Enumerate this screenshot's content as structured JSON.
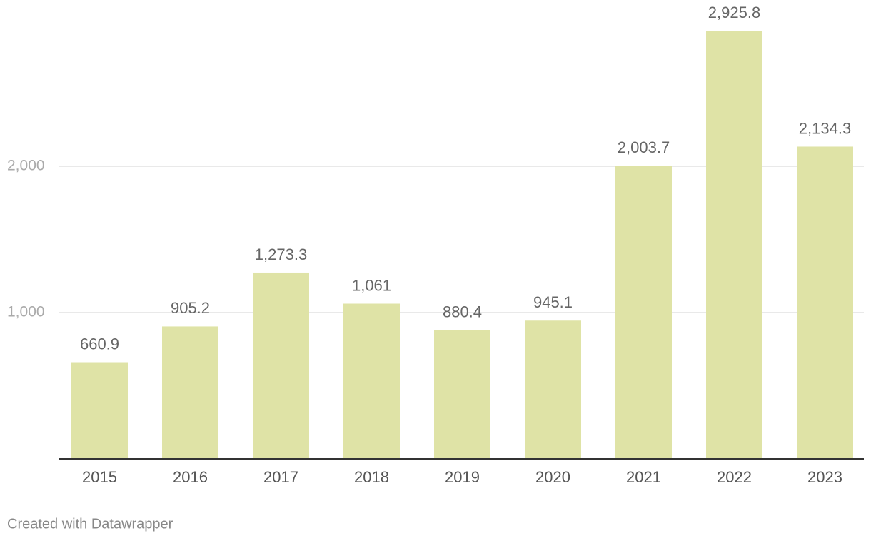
{
  "chart_data": {
    "type": "bar",
    "categories": [
      "2015",
      "2016",
      "2017",
      "2018",
      "2019",
      "2020",
      "2021",
      "2022",
      "2023"
    ],
    "values": [
      660.9,
      905.2,
      1273.3,
      1061,
      880.4,
      945.1,
      2003.7,
      2925.8,
      2134.3
    ],
    "value_labels": [
      "660.9",
      "905.2",
      "1,273.3",
      "1,061",
      "880.4",
      "945.1",
      "2,003.7",
      "2,925.8",
      "2,134.3"
    ],
    "color": "#dfe3a6",
    "ylim": [
      0,
      3000
    ],
    "yticks": [
      {
        "value": 1000,
        "label": "1,000"
      },
      {
        "value": 2000,
        "label": "2,000"
      }
    ],
    "grid": true,
    "credit": "Created with Datawrapper"
  }
}
